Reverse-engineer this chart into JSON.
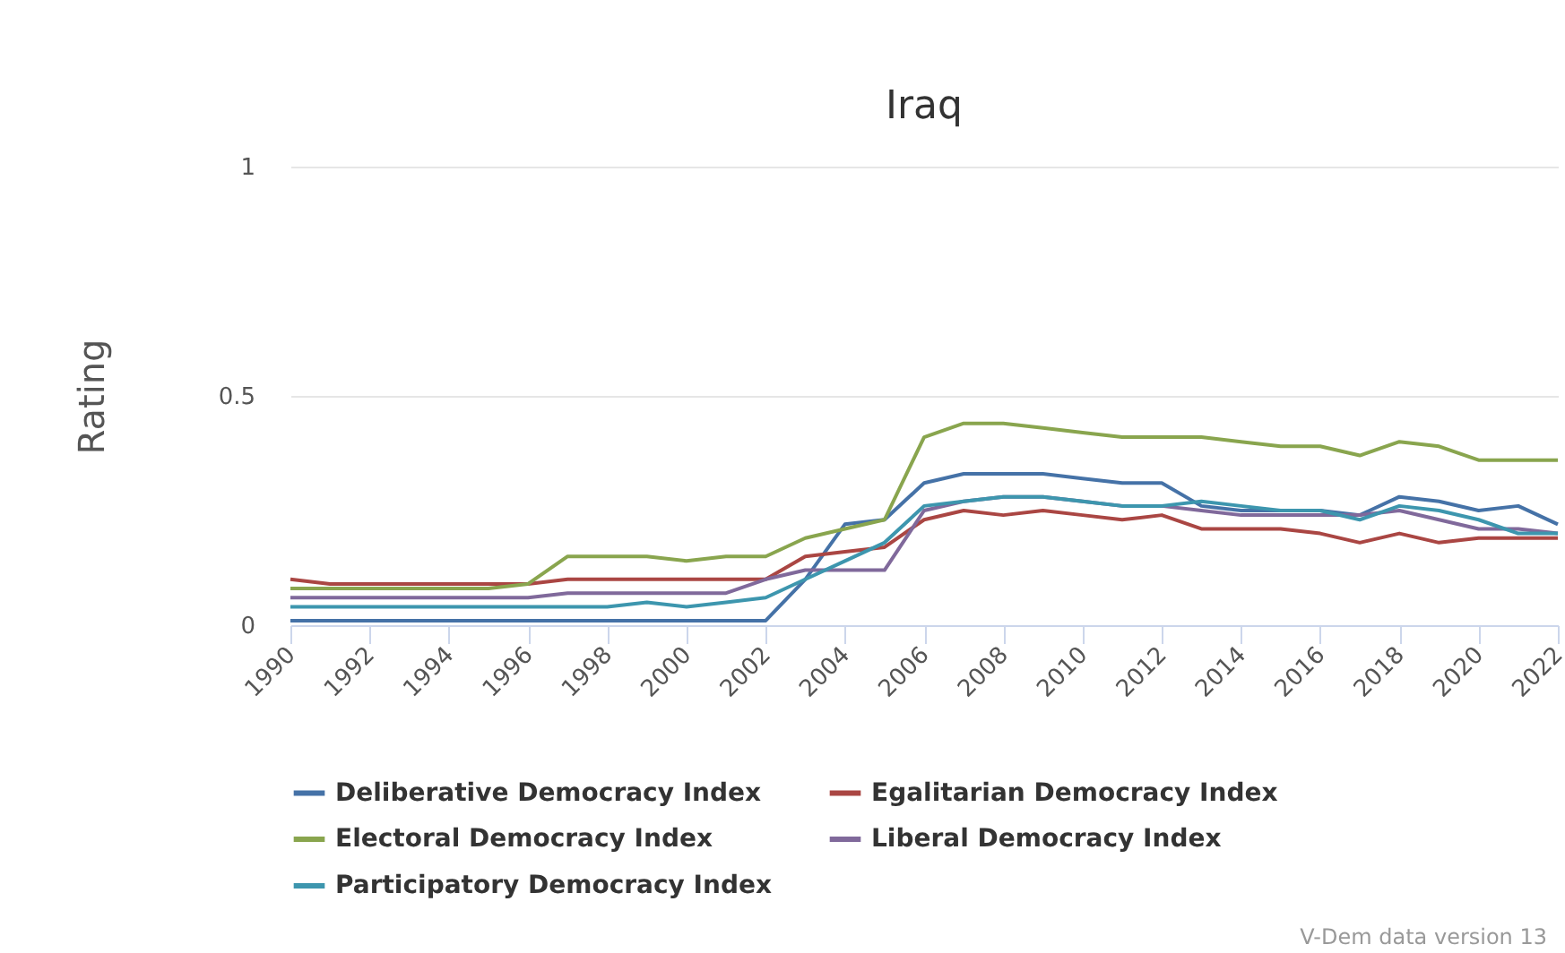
{
  "chart_data": {
    "type": "line",
    "title": "Iraq",
    "ylabel": "Rating",
    "x": [
      1990,
      1991,
      1992,
      1993,
      1994,
      1995,
      1996,
      1997,
      1998,
      1999,
      2000,
      2001,
      2002,
      2003,
      2004,
      2005,
      2006,
      2007,
      2008,
      2009,
      2010,
      2011,
      2012,
      2013,
      2014,
      2015,
      2016,
      2017,
      2018,
      2019,
      2020,
      2021,
      2022
    ],
    "series": [
      {
        "name": "Deliberative Democracy Index",
        "color": "#4572a7",
        "values": [
          0.01,
          0.01,
          0.01,
          0.01,
          0.01,
          0.01,
          0.01,
          0.01,
          0.01,
          0.01,
          0.01,
          0.01,
          0.01,
          0.1,
          0.22,
          0.23,
          0.31,
          0.33,
          0.33,
          0.33,
          0.32,
          0.31,
          0.31,
          0.26,
          0.25,
          0.25,
          0.25,
          0.24,
          0.28,
          0.27,
          0.25,
          0.26,
          0.22
        ]
      },
      {
        "name": "Egalitarian Democracy Index",
        "color": "#aa4643",
        "values": [
          0.1,
          0.09,
          0.09,
          0.09,
          0.09,
          0.09,
          0.09,
          0.1,
          0.1,
          0.1,
          0.1,
          0.1,
          0.1,
          0.15,
          0.16,
          0.17,
          0.23,
          0.25,
          0.24,
          0.25,
          0.24,
          0.23,
          0.24,
          0.21,
          0.21,
          0.21,
          0.2,
          0.18,
          0.2,
          0.18,
          0.19,
          0.19,
          0.19
        ]
      },
      {
        "name": "Electoral Democracy Index",
        "color": "#89a54e",
        "values": [
          0.08,
          0.08,
          0.08,
          0.08,
          0.08,
          0.08,
          0.09,
          0.15,
          0.15,
          0.15,
          0.14,
          0.15,
          0.15,
          0.19,
          0.21,
          0.23,
          0.41,
          0.44,
          0.44,
          0.43,
          0.42,
          0.41,
          0.41,
          0.41,
          0.4,
          0.39,
          0.39,
          0.37,
          0.4,
          0.39,
          0.36,
          0.36,
          0.36
        ]
      },
      {
        "name": "Liberal Democracy Index",
        "color": "#80699b",
        "values": [
          0.06,
          0.06,
          0.06,
          0.06,
          0.06,
          0.06,
          0.06,
          0.07,
          0.07,
          0.07,
          0.07,
          0.07,
          0.1,
          0.12,
          0.12,
          0.12,
          0.25,
          0.27,
          0.28,
          0.28,
          0.27,
          0.26,
          0.26,
          0.25,
          0.24,
          0.24,
          0.24,
          0.24,
          0.25,
          0.23,
          0.21,
          0.21,
          0.2
        ]
      },
      {
        "name": "Participatory Democracy Index",
        "color": "#3d96ae",
        "values": [
          0.04,
          0.04,
          0.04,
          0.04,
          0.04,
          0.04,
          0.04,
          0.04,
          0.04,
          0.05,
          0.04,
          0.05,
          0.06,
          0.1,
          0.14,
          0.18,
          0.26,
          0.27,
          0.28,
          0.28,
          0.27,
          0.26,
          0.26,
          0.27,
          0.26,
          0.25,
          0.25,
          0.23,
          0.26,
          0.25,
          0.23,
          0.2,
          0.2
        ]
      }
    ],
    "xlim": [
      1990,
      2022
    ],
    "xticks": [
      1990,
      1992,
      1994,
      1996,
      1998,
      2000,
      2002,
      2004,
      2006,
      2008,
      2010,
      2012,
      2014,
      2016,
      2018,
      2020,
      2022
    ],
    "ylim": [
      0,
      1
    ],
    "yticks": [
      0,
      0.5,
      1
    ],
    "grid": "y",
    "legend": "bottom",
    "marker": "none",
    "line_style": "solid",
    "annotations": [
      "V-Dem data version 13"
    ]
  }
}
